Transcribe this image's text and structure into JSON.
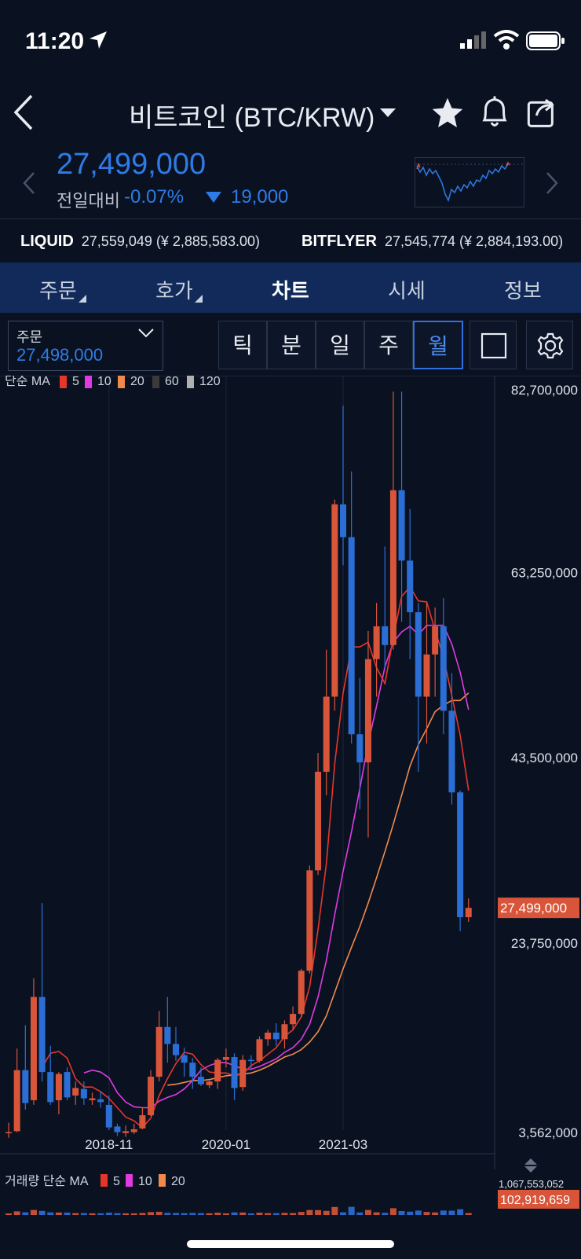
{
  "status_bar": {
    "time": "11:20"
  },
  "header": {
    "title": "비트코인 (BTC/KRW)"
  },
  "ticker": {
    "price": "27,499,000",
    "change_label": "전일대비",
    "change_pct": "-0.07%",
    "change_amount": "19,000"
  },
  "exchanges": [
    {
      "name": "LIQUID",
      "value": "27,559,049 (¥ 2,885,583.00)"
    },
    {
      "name": "BITFLYER",
      "value": "27,545,774 (¥ 2,884,193.00)"
    }
  ],
  "tabs": [
    {
      "label": "주문",
      "active": false,
      "has_menu": true
    },
    {
      "label": "호가",
      "active": false,
      "has_menu": true
    },
    {
      "label": "차트",
      "active": true,
      "has_menu": false
    },
    {
      "label": "시세",
      "active": false,
      "has_menu": false
    },
    {
      "label": "정보",
      "active": false,
      "has_menu": false
    }
  ],
  "order_select": {
    "label": "주문",
    "value": "27,498,000"
  },
  "timeframes": [
    {
      "label": "틱",
      "active": false
    },
    {
      "label": "분",
      "active": false
    },
    {
      "label": "일",
      "active": false
    },
    {
      "label": "주",
      "active": false
    },
    {
      "label": "월",
      "active": true
    }
  ],
  "colors": {
    "up": "#d9553a",
    "down": "#2b6fd6",
    "ma5": "#e8352a",
    "ma10": "#e03be0",
    "ma20": "#f08a4b",
    "ma60": "#3a3a3a",
    "ma120": "#b0b0b0",
    "accent": "#2f7be6",
    "tabbar": "#112a5a"
  },
  "chart_data": {
    "type": "candlestick",
    "ma_legend": {
      "prefix": "단순 MA",
      "periods": [
        "5",
        "10",
        "20",
        "60",
        "120"
      ]
    },
    "y_ticks": [
      "82,700,000",
      "63,250,000",
      "43,500,000",
      "23,750,000",
      "3,562,000"
    ],
    "y_tick_values": [
      82700000,
      63250000,
      43500000,
      23750000,
      3562000
    ],
    "ylim": [
      3562000,
      82700000
    ],
    "x_ticks": [
      {
        "label": "2018-11",
        "index": 12
      },
      {
        "label": "2020-01",
        "index": 26
      },
      {
        "label": "2021-03",
        "index": 40
      }
    ],
    "last_price_label": "27,499,000",
    "last_price": 27499000,
    "candles": [
      [
        3600000.0,
        4600000.0,
        3000000.0,
        3600000.0
      ],
      [
        3700000.0,
        12500000.0,
        3600000.0,
        10200000.0
      ],
      [
        10200000.0,
        15000000.0,
        6000000.0,
        6700000.0
      ],
      [
        7000000.0,
        20000000.0,
        6500000.0,
        18000000.0
      ],
      [
        18000000.0,
        28000000.0,
        9000000.0,
        10000000.0
      ],
      [
        10000000.0,
        12800000.0,
        6500000.0,
        6800000.0
      ],
      [
        7000000.0,
        10000000.0,
        5500000.0,
        9800000.0
      ],
      [
        10000000.0,
        10500000.0,
        7000000.0,
        7300000.0
      ],
      [
        7500000.0,
        9000000.0,
        6500000.0,
        8300000.0
      ],
      [
        8200000.0,
        9000000.0,
        6500000.0,
        7200000.0
      ],
      [
        7000000.0,
        7800000.0,
        6500000.0,
        7200000.0
      ],
      [
        7100000.0,
        8000000.0,
        6200000.0,
        6800000.0
      ],
      [
        6500000.0,
        7500000.0,
        3800000.0,
        4100000.0
      ],
      [
        4200000.0,
        4500000.0,
        3200000.0,
        3600000.0
      ],
      [
        3500000.0,
        4300000.0,
        3100000.0,
        3700000.0
      ],
      [
        3600000.0,
        4500000.0,
        3400000.0,
        3900000.0
      ],
      [
        4000000.0,
        6200000.0,
        3900000.0,
        5400000.0
      ],
      [
        5400000.0,
        10200000.0,
        5300000.0,
        9500000.0
      ],
      [
        9500000.0,
        16500000.0,
        9000000.0,
        14800000.0
      ],
      [
        14800000.0,
        18000000.0,
        11000000.0,
        13000000.0
      ],
      [
        13000000.0,
        14800000.0,
        11200000.0,
        11800000.0
      ],
      [
        11800000.0,
        12600000.0,
        9500000.0,
        11000000.0
      ],
      [
        11000000.0,
        11500000.0,
        8200000.0,
        9500000.0
      ],
      [
        9500000.0,
        10500000.0,
        8500000.0,
        8700000.0
      ],
      [
        8600000.0,
        9100000.0,
        8300000.0,
        9000000.0
      ],
      [
        9000000.0,
        11500000.0,
        8200000.0,
        11300000.0
      ],
      [
        11300000.0,
        12500000.0,
        10500000.0,
        11600000.0
      ],
      [
        11600000.0,
        12000000.0,
        7000000.0,
        8300000.0
      ],
      [
        8400000.0,
        11800000.0,
        8000000.0,
        11300000.0
      ],
      [
        11300000.0,
        11800000.0,
        10200000.0,
        11200000.0
      ],
      [
        11200000.0,
        13800000.0,
        11000000.0,
        13500000.0
      ],
      [
        13500000.0,
        14500000.0,
        12800000.0,
        14200000.0
      ],
      [
        14200000.0,
        15200000.0,
        12800000.0,
        13500000.0
      ],
      [
        13500000.0,
        15500000.0,
        12500000.0,
        15100000.0
      ],
      [
        15100000.0,
        17000000.0,
        14600000.0,
        16200000.0
      ],
      [
        16200000.0,
        21000000.0,
        15800000.0,
        20800000.0
      ],
      [
        20800000.0,
        32000000.0,
        20500000.0,
        31500000.0
      ],
      [
        31500000.0,
        44000000.0,
        31000000.0,
        42000000.0
      ],
      [
        42000000.0,
        55000000.0,
        39500000.0,
        50000000.0
      ],
      [
        50000000.0,
        71000000.0,
        48500000.0,
        70500000.0
      ],
      [
        70500000.0,
        81000000.0,
        64000000.0,
        67000000.0
      ],
      [
        67000000.0,
        74000000.0,
        45000000.0,
        46000000.0
      ],
      [
        46000000.0,
        52000000.0,
        38000000.0,
        43000000.0
      ],
      [
        43000000.0,
        57000000.0,
        35000000.0,
        54000000.0
      ],
      [
        54000000.0,
        60000000.0,
        50000000.0,
        57500000.0
      ],
      [
        57500000.0,
        66000000.0,
        53000000.0,
        55500000.0
      ],
      [
        55500000.0,
        82500000.0,
        55000000.0,
        72000000.0
      ],
      [
        72000000.0,
        82500000.0,
        58000000.0,
        64500000.0
      ],
      [
        64500000.0,
        70000000.0,
        54000000.0,
        59000000.0
      ],
      [
        59000000.0,
        60000000.0,
        42000000.0,
        50000000.0
      ],
      [
        50000000.0,
        60000000.0,
        45000000.0,
        54500000.0
      ],
      [
        54500000.0,
        59500000.0,
        50000000.0,
        57500000.0
      ],
      [
        57500000.0,
        60500000.0,
        46000000.0,
        48500000.0
      ],
      [
        48500000.0,
        52500000.0,
        38500000.0,
        39800000.0
      ],
      [
        39800000.0,
        40000000.0,
        25000000.0,
        26500000.0
      ],
      [
        26500000.0,
        28500000.0,
        26000000.0,
        27500000.0
      ]
    ],
    "ma5": [
      null,
      null,
      null,
      null,
      10500000.0,
      12000000.0,
      12200000.0,
      11500000.0,
      9300000.0,
      8400000.0,
      8400000.0,
      7900000.0,
      7200000.0,
      6200000.0,
      5200000.0,
      4800000.0,
      4100000.0,
      5100000.0,
      7500000.0,
      9300000.0,
      10900000.0,
      12100000.0,
      11900000.0,
      10800000.0,
      10000000.0,
      9900000.0,
      9900000.0,
      9600000.0,
      9800000.0,
      10700000.0,
      11200000.0,
      11900000.0,
      12600000.0,
      13800000.0,
      14500000.0,
      15900000.0,
      19100000.0,
      25200000.0,
      32200000.0,
      42900000.0,
      50400000.0,
      55300000.0,
      55300000.0,
      55800000.0,
      53100000.0,
      51400000.0,
      56300000.0,
      60700000.0,
      61700000.0,
      60200000.0,
      60100000.0,
      57100000.0,
      54200000.0,
      50100000.0,
      45900000.0,
      40000000.0
    ],
    "ma10": [
      null,
      null,
      null,
      null,
      null,
      null,
      null,
      null,
      null,
      9900000.0,
      10200000.0,
      10000000.0,
      9400000.0,
      7800000.0,
      6800000.0,
      6300000.0,
      6200000.0,
      6200000.0,
      6900000.0,
      7300000.0,
      7600000.0,
      8200000.0,
      9100000.0,
      10200000.0,
      10700000.0,
      11000000.0,
      11000000.0,
      10700000.0,
      10300000.0,
      10300000.0,
      10600000.0,
      11000000.0,
      11400000.0,
      12100000.0,
      12600000.0,
      13500000.0,
      15100000.0,
      18000000.0,
      21900000.0,
      26800000.0,
      31400000.0,
      35600000.0,
      40200000.0,
      45000000.0,
      49000000.0,
      53200000.0,
      55800000.0,
      56900000.0,
      57500000.0,
      56600000.0,
      57600000.0,
      57600000.0,
      57600000.0,
      55600000.0,
      52600000.0,
      48600000.0
    ],
    "ma20": [
      null,
      null,
      null,
      null,
      null,
      null,
      null,
      null,
      null,
      null,
      null,
      null,
      null,
      null,
      null,
      null,
      null,
      null,
      null,
      8600000.0,
      8700000.0,
      8900000.0,
      9100000.0,
      9100000.0,
      9200000.0,
      9400000.0,
      9600000.0,
      9700000.0,
      9800000.0,
      9900000.0,
      10200000.0,
      10600000.0,
      11100000.0,
      11600000.0,
      11900000.0,
      12400000.0,
      13200000.0,
      14300000.0,
      16000000.0,
      18500000.0,
      21000000.0,
      23300000.0,
      25500000.0,
      28000000.0,
      30700000.0,
      33500000.0,
      36400000.0,
      39500000.0,
      42600000.0,
      44900000.0,
      46600000.0,
      48400000.0,
      49100000.0,
      49600000.0,
      49600000.0,
      50400000.0
    ]
  },
  "volume_legend": {
    "prefix": "거래량 단순 MA",
    "periods": [
      "5",
      "10",
      "20"
    ],
    "max_label": "1,067,553,052",
    "last_label": "102,919,659"
  }
}
